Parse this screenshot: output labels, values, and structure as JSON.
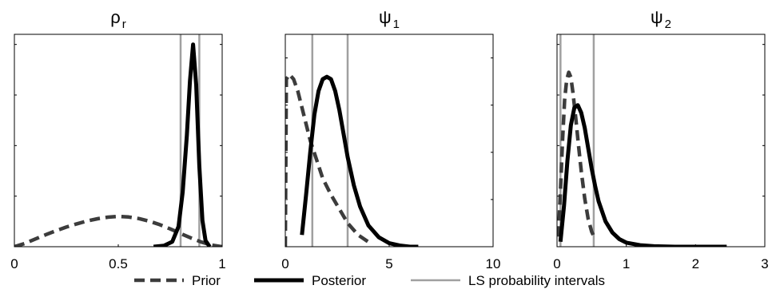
{
  "chart_data": [
    {
      "type": "line",
      "title": "ρ",
      "title_subscript": "r",
      "xlim": [
        0,
        1
      ],
      "ylim": [
        0,
        10.5
      ],
      "xticks": [
        0,
        0.5,
        1
      ],
      "xtick_labels": [
        "0",
        "0.5",
        "1"
      ],
      "yticks": [
        2.5,
        5,
        7.5,
        10
      ],
      "series": [
        {
          "name": "Prior",
          "style": "dashed",
          "x": [
            0,
            0.05,
            0.1,
            0.15,
            0.2,
            0.25,
            0.3,
            0.35,
            0.4,
            0.45,
            0.5,
            0.55,
            0.6,
            0.65,
            0.7,
            0.75,
            0.8,
            0.85,
            0.9,
            0.95,
            1
          ],
          "y": [
            0,
            0.16,
            0.38,
            0.59,
            0.79,
            0.97,
            1.13,
            1.27,
            1.38,
            1.46,
            1.5,
            1.47,
            1.39,
            1.26,
            1.09,
            0.88,
            0.65,
            0.43,
            0.23,
            0.08,
            0
          ]
        },
        {
          "name": "Posterior",
          "style": "solid",
          "x": [
            0.67,
            0.72,
            0.76,
            0.79,
            0.81,
            0.83,
            0.845,
            0.86,
            0.875,
            0.89,
            0.905,
            0.92,
            0.94
          ],
          "y": [
            0,
            0.05,
            0.25,
            1.0,
            2.7,
            5.5,
            8.2,
            10.0,
            8.0,
            4.0,
            1.3,
            0.3,
            0
          ]
        }
      ],
      "intervals": [
        0.8,
        0.89
      ]
    },
    {
      "type": "line",
      "title": "ψ",
      "title_subscript": "1",
      "xlim": [
        0,
        10
      ],
      "ylim": [
        0,
        0.9
      ],
      "xticks": [
        0,
        5,
        10
      ],
      "xtick_labels": [
        "0",
        "5",
        "10"
      ],
      "yticks": [
        0.2,
        0.4,
        0.6,
        0.8
      ],
      "series": [
        {
          "name": "Prior",
          "style": "dashed",
          "x": [
            0,
            0.05,
            0.2,
            0.4,
            0.6,
            0.8,
            1.0,
            1.2,
            1.5,
            1.8,
            2.2,
            2.6,
            3.0,
            3.5,
            4.0
          ],
          "y": [
            0,
            0.71,
            0.73,
            0.71,
            0.66,
            0.59,
            0.52,
            0.45,
            0.37,
            0.29,
            0.22,
            0.16,
            0.1,
            0.05,
            0.02
          ]
        },
        {
          "name": "Posterior",
          "style": "solid",
          "x": [
            0.8,
            1.0,
            1.2,
            1.4,
            1.6,
            1.8,
            2.0,
            2.2,
            2.4,
            2.6,
            2.8,
            3.0,
            3.3,
            3.6,
            4.0,
            4.5,
            5.0,
            5.5,
            6.0,
            6.4
          ],
          "y": [
            0.05,
            0.22,
            0.4,
            0.56,
            0.66,
            0.71,
            0.72,
            0.71,
            0.66,
            0.58,
            0.48,
            0.38,
            0.26,
            0.17,
            0.09,
            0.04,
            0.015,
            0.005,
            0,
            0
          ]
        }
      ],
      "intervals": [
        1.3,
        3.0
      ]
    },
    {
      "type": "line",
      "title": "ψ",
      "title_subscript": "2",
      "xlim": [
        0,
        3
      ],
      "ylim": [
        0,
        4.2
      ],
      "xticks": [
        0,
        1,
        2,
        3
      ],
      "xtick_labels": [
        "0",
        "1",
        "2",
        "3"
      ],
      "yticks": [
        1,
        2,
        3,
        4
      ],
      "series": [
        {
          "name": "Prior",
          "style": "dashed",
          "x": [
            0.02,
            0.05,
            0.08,
            0.11,
            0.14,
            0.17,
            0.2,
            0.23,
            0.27,
            0.31,
            0.35,
            0.4,
            0.45,
            0.5,
            0.55
          ],
          "y": [
            0.2,
            1.1,
            2.1,
            2.9,
            3.3,
            3.45,
            3.35,
            3.05,
            2.55,
            2.0,
            1.5,
            0.95,
            0.55,
            0.3,
            0.15
          ]
        },
        {
          "name": "Posterior",
          "style": "solid",
          "x": [
            0.05,
            0.1,
            0.15,
            0.2,
            0.25,
            0.3,
            0.35,
            0.4,
            0.45,
            0.5,
            0.55,
            0.6,
            0.7,
            0.8,
            0.9,
            1.0,
            1.2,
            1.4,
            1.7,
            2.0,
            2.3,
            2.45
          ],
          "y": [
            0.1,
            0.8,
            1.7,
            2.4,
            2.75,
            2.8,
            2.65,
            2.35,
            1.95,
            1.55,
            1.2,
            0.9,
            0.5,
            0.28,
            0.15,
            0.08,
            0.03,
            0.01,
            0,
            0,
            0,
            0
          ]
        }
      ],
      "intervals": [
        0.05,
        0.53
      ]
    }
  ],
  "legend": {
    "placement": "bottom",
    "entries": [
      {
        "label": "Prior",
        "style": "dashed"
      },
      {
        "label": "Posterior",
        "style": "solid"
      },
      {
        "label": "LS probability intervals",
        "style": "interval"
      }
    ]
  },
  "colors": {
    "prior": "#3c3c3c",
    "posterior": "#000000",
    "interval": "#a0a0a0",
    "axis": "#000000"
  }
}
